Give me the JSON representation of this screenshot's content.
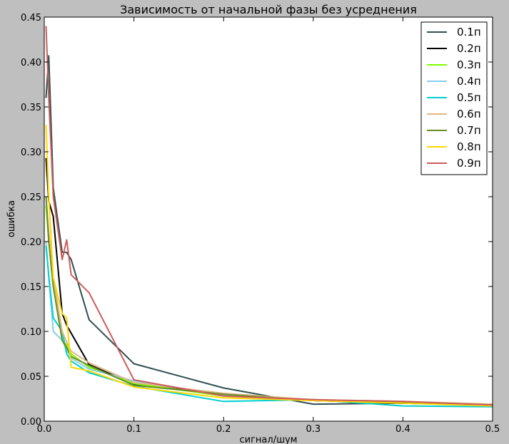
{
  "chart_data": {
    "type": "line",
    "title": "Зависимость от начальной фазы без усреднения",
    "xlabel": "сигнал/шум",
    "ylabel": "ошибка",
    "xlim": [
      0.0,
      0.5
    ],
    "ylim": [
      0.0,
      0.45
    ],
    "xticks": [
      "0.0",
      "0.1",
      "0.2",
      "0.3",
      "0.4",
      "0.5"
    ],
    "yticks": [
      "0.00",
      "0.05",
      "0.10",
      "0.15",
      "0.20",
      "0.25",
      "0.30",
      "0.35",
      "0.40",
      "0.45"
    ],
    "grid": false,
    "legend_position": "top-right",
    "series": [
      {
        "name": "0.1п",
        "color": "#2f4f4f",
        "x": [
          0.002,
          0.005,
          0.01,
          0.02,
          0.025,
          0.03,
          0.05,
          0.1,
          0.2,
          0.3,
          0.4,
          0.5
        ],
        "y": [
          0.36,
          0.407,
          0.26,
          0.188,
          0.188,
          0.18,
          0.113,
          0.064,
          0.037,
          0.019,
          0.02,
          0.018
        ]
      },
      {
        "name": "0.2п",
        "color": "#000000",
        "x": [
          0.002,
          0.005,
          0.01,
          0.02,
          0.025,
          0.03,
          0.05,
          0.1,
          0.2,
          0.3,
          0.4,
          0.5
        ],
        "y": [
          0.293,
          0.245,
          0.228,
          0.12,
          0.107,
          0.098,
          0.063,
          0.041,
          0.03,
          0.023,
          0.02,
          0.018
        ]
      },
      {
        "name": "0.3п",
        "color": "#7cfc00",
        "x": [
          0.002,
          0.005,
          0.01,
          0.02,
          0.025,
          0.03,
          0.05,
          0.1,
          0.2,
          0.3,
          0.4,
          0.5
        ],
        "y": [
          0.24,
          0.2,
          0.15,
          0.09,
          0.085,
          0.075,
          0.06,
          0.042,
          0.028,
          0.024,
          0.021,
          0.018
        ]
      },
      {
        "name": "0.4п",
        "color": "#87ceeb",
        "x": [
          0.002,
          0.005,
          0.01,
          0.02,
          0.025,
          0.03,
          0.05,
          0.1,
          0.2,
          0.3,
          0.4,
          0.5
        ],
        "y": [
          0.2,
          0.16,
          0.1,
          0.09,
          0.08,
          0.07,
          0.058,
          0.045,
          0.029,
          0.024,
          0.021,
          0.018
        ]
      },
      {
        "name": "0.5п",
        "color": "#00ced1",
        "x": [
          0.002,
          0.005,
          0.01,
          0.02,
          0.025,
          0.03,
          0.05,
          0.1,
          0.2,
          0.3,
          0.4,
          0.5
        ],
        "y": [
          0.195,
          0.162,
          0.115,
          0.1,
          0.075,
          0.067,
          0.054,
          0.039,
          0.022,
          0.024,
          0.017,
          0.016
        ]
      },
      {
        "name": "0.6п",
        "color": "#deb887",
        "x": [
          0.002,
          0.005,
          0.01,
          0.02,
          0.025,
          0.03,
          0.05,
          0.1,
          0.2,
          0.3,
          0.4,
          0.5
        ],
        "y": [
          0.25,
          0.21,
          0.16,
          0.1,
          0.088,
          0.078,
          0.065,
          0.043,
          0.031,
          0.024,
          0.022,
          0.019
        ]
      },
      {
        "name": "0.7п",
        "color": "#6b8e23",
        "x": [
          0.002,
          0.005,
          0.01,
          0.02,
          0.025,
          0.03,
          0.05,
          0.1,
          0.2,
          0.3,
          0.4,
          0.5
        ],
        "y": [
          0.25,
          0.2,
          0.15,
          0.09,
          0.082,
          0.072,
          0.062,
          0.04,
          0.03,
          0.023,
          0.021,
          0.018
        ]
      },
      {
        "name": "0.8п",
        "color": "#ffd700",
        "x": [
          0.002,
          0.005,
          0.01,
          0.02,
          0.025,
          0.03,
          0.05,
          0.1,
          0.2,
          0.3,
          0.4,
          0.5
        ],
        "y": [
          0.33,
          0.25,
          0.16,
          0.12,
          0.115,
          0.06,
          0.056,
          0.038,
          0.026,
          0.023,
          0.02,
          0.017
        ]
      },
      {
        "name": "0.9п",
        "color": "#cd5c5c",
        "x": [
          0.002,
          0.005,
          0.01,
          0.02,
          0.025,
          0.03,
          0.05,
          0.1,
          0.2,
          0.3,
          0.4,
          0.5
        ],
        "y": [
          0.44,
          0.36,
          0.25,
          0.18,
          0.202,
          0.163,
          0.143,
          0.046,
          0.028,
          0.024,
          0.022,
          0.018
        ]
      }
    ]
  }
}
